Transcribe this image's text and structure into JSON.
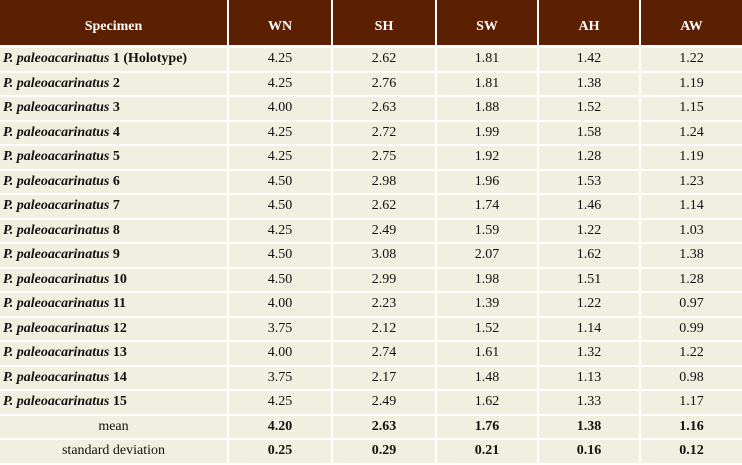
{
  "table": {
    "header": [
      "Specimen",
      "WN",
      "SH",
      "SW",
      "AH",
      "AW"
    ],
    "rows": [
      {
        "species": "P. paleoacarinatus",
        "number": "1 (Holotype)",
        "values": [
          "4.25",
          "2.62",
          "1.81",
          "1.42",
          "1.22"
        ]
      },
      {
        "species": "P. paleoacarinatus",
        "number": "2",
        "values": [
          "4.25",
          "2.76",
          "1.81",
          "1.38",
          "1.19"
        ]
      },
      {
        "species": "P. paleoacarinatus",
        "number": "3",
        "values": [
          "4.00",
          "2.63",
          "1.88",
          "1.52",
          "1.15"
        ]
      },
      {
        "species": "P. paleoacarinatus",
        "number": "4",
        "values": [
          "4.25",
          "2.72",
          "1.99",
          "1.58",
          "1.24"
        ]
      },
      {
        "species": "P. paleoacarinatus",
        "number": "5",
        "values": [
          "4.25",
          "2.75",
          "1.92",
          "1.28",
          "1.19"
        ]
      },
      {
        "species": "P. paleoacarinatus",
        "number": "6",
        "values": [
          "4.50",
          "2.98",
          "1.96",
          "1.53",
          "1.23"
        ]
      },
      {
        "species": "P. paleoacarinatus",
        "number": "7",
        "values": [
          "4.50",
          "2.62",
          "1.74",
          "1.46",
          "1.14"
        ]
      },
      {
        "species": "P. paleoacarinatus",
        "number": "8",
        "values": [
          "4.25",
          "2.49",
          "1.59",
          "1.22",
          "1.03"
        ]
      },
      {
        "species": "P. paleoacarinatus",
        "number": "9",
        "values": [
          "4.50",
          "3.08",
          "2.07",
          "1.62",
          "1.38"
        ]
      },
      {
        "species": "P. paleoacarinatus",
        "number": "10",
        "values": [
          "4.50",
          "2.99",
          "1.98",
          "1.51",
          "1.28"
        ]
      },
      {
        "species": "P. paleoacarinatus",
        "number": "11",
        "values": [
          "4.00",
          "2.23",
          "1.39",
          "1.22",
          "0.97"
        ]
      },
      {
        "species": "P. paleoacarinatus",
        "number": "12",
        "values": [
          "3.75",
          "2.12",
          "1.52",
          "1.14",
          "0.99"
        ]
      },
      {
        "species": "P. paleoacarinatus",
        "number": "13",
        "values": [
          "4.00",
          "2.74",
          "1.61",
          "1.32",
          "1.22"
        ]
      },
      {
        "species": "P. paleoacarinatus",
        "number": "14",
        "values": [
          "3.75",
          "2.17",
          "1.48",
          "1.13",
          "0.98"
        ]
      },
      {
        "species": "P. paleoacarinatus",
        "number": "15",
        "values": [
          "4.25",
          "2.49",
          "1.62",
          "1.33",
          "1.17"
        ]
      }
    ],
    "summary": [
      {
        "label": "mean",
        "values": [
          "4.20",
          "2.63",
          "1.76",
          "1.38",
          "1.16"
        ]
      },
      {
        "label": "standard deviation",
        "values": [
          "0.25",
          "0.29",
          "0.21",
          "0.16",
          "0.12"
        ]
      }
    ]
  }
}
